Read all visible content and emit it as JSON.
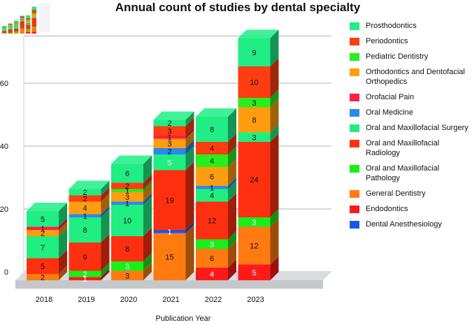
{
  "chart_data": {
    "type": "bar",
    "stacked": true,
    "three_d": true,
    "title": "Annual count of studies by dental specialty",
    "xlabel": "Publication Year",
    "ylabel": "",
    "ylim": [
      0,
      75
    ],
    "yticks": [
      0,
      20,
      40,
      60
    ],
    "grid": true,
    "legend_position": "right",
    "categories": [
      "2018",
      "2019",
      "2020",
      "2021",
      "2022",
      "2023"
    ],
    "series": [
      {
        "name": "Endodontics",
        "color": "#ff1a1a",
        "values": [
          0,
          1,
          0,
          0,
          4,
          5
        ]
      },
      {
        "name": "General Dentistry",
        "color": "#ff7a10",
        "values": [
          2,
          0,
          3,
          15,
          6,
          12
        ]
      },
      {
        "name": "Oral and Maxillofacial Pathology",
        "color": "#1aee1a",
        "values": [
          0,
          2,
          3,
          0,
          3,
          3
        ]
      },
      {
        "name": "Dental Anesthesiology",
        "color": "#1a55ee",
        "values": [
          0,
          0,
          0,
          1,
          0,
          0
        ]
      },
      {
        "name": "Oral and Maxillofacial Radiology",
        "color": "#ff3010",
        "values": [
          5,
          9,
          8,
          19,
          12,
          24
        ]
      },
      {
        "name": "Oral and Maxillofacial Surgery",
        "color": "#20ee80",
        "values": [
          7,
          8,
          10,
          5,
          4,
          3
        ]
      },
      {
        "name": "Oral Medicine",
        "color": "#2a88ee",
        "values": [
          0,
          1,
          1,
          2,
          1,
          0
        ]
      },
      {
        "name": "Orthodontics and Dentofacial Orthopedics",
        "color": "#ff9d10",
        "values": [
          2,
          4,
          3,
          3,
          6,
          8
        ]
      },
      {
        "name": "Pediatric Dentistry",
        "color": "#28ee20",
        "values": [
          0,
          0,
          1,
          0,
          4,
          3
        ]
      },
      {
        "name": "Orofacial Pain",
        "color": "#ff1e45",
        "values": [
          1,
          0,
          0,
          1,
          0,
          0
        ]
      },
      {
        "name": "Periodontics",
        "color": "#ff3d10",
        "values": [
          0,
          2,
          2,
          3,
          4,
          10
        ]
      },
      {
        "name": "Prosthodontics",
        "color": "#20ee85",
        "values": [
          5,
          2,
          6,
          2,
          8,
          9
        ]
      }
    ],
    "labels": [
      [
        "",
        "2",
        "",
        "",
        "5",
        "7",
        "",
        "2",
        "",
        "1",
        "",
        "5"
      ],
      [
        "1",
        "",
        "2",
        "",
        "9",
        "8",
        "1",
        "4",
        "",
        "",
        "2",
        "2"
      ],
      [
        "",
        "3",
        "3",
        "",
        "8",
        "10",
        "1",
        "3",
        "1",
        "",
        "2",
        "6"
      ],
      [
        "",
        "15",
        "",
        "1",
        "19",
        "5",
        "2",
        "3",
        "",
        "1",
        "3",
        "2"
      ],
      [
        "4",
        "6",
        "3",
        "",
        "12",
        "4",
        "1",
        "6",
        "4",
        "",
        "4",
        "8"
      ],
      [
        "5",
        "12",
        "3",
        "",
        "24",
        "3",
        "",
        "8",
        "3",
        "",
        "10",
        "9"
      ]
    ],
    "legend_order": [
      "Prosthodontics",
      "Periodontics",
      "Pediatric Dentistry",
      "Orthodontics and Dentofacial Orthopedics",
      "Orofacial Pain",
      "Oral Medicine",
      "Oral and Maxillofacial Surgery",
      "Oral and Maxillofacial Radiology",
      "Oral and Maxillofacial Pathology",
      "General Dentistry",
      "Endodontics",
      "Dental Anesthesiology"
    ]
  }
}
